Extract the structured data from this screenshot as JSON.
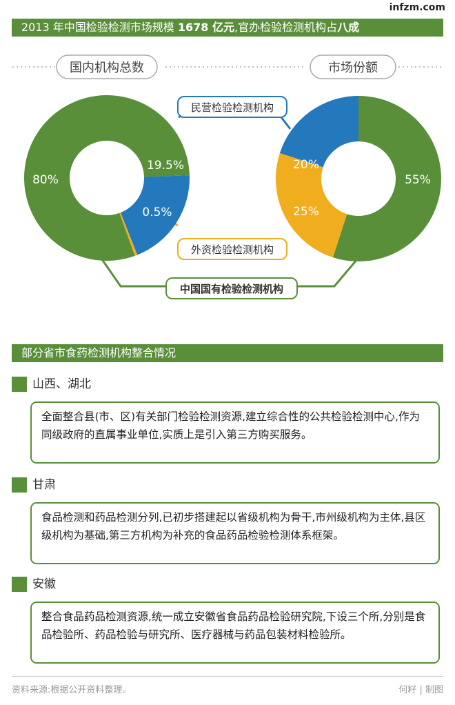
{
  "site_logo": "infzm.com",
  "header": {
    "title_pre": "2013 年中国检验检测市场规模 ",
    "title_num": "1678 亿元",
    "title_mid": ",官办检验检测机构占",
    "title_end": "八成"
  },
  "colors": {
    "green": "#5a8f3a",
    "blue": "#2479bd",
    "orange": "#f0ad1e"
  },
  "chart_data": [
    {
      "type": "pie",
      "title": "国内机构总数",
      "slices": [
        {
          "label": "中国国有检验检测机构",
          "value": 80,
          "display": "80%",
          "color": "#5a8f3a"
        },
        {
          "label": "民营检验检测机构",
          "value": 19.5,
          "display": "19.5%",
          "color": "#2479bd"
        },
        {
          "label": "外资检验检测机构",
          "value": 0.5,
          "display": "0.5%",
          "color": "#f0ad1e"
        }
      ]
    },
    {
      "type": "pie",
      "title": "市场份额",
      "slices": [
        {
          "label": "中国国有检验检测机构",
          "value": 55,
          "display": "55%",
          "color": "#5a8f3a"
        },
        {
          "label": "民营检验检测机构",
          "value": 20,
          "display": "20%",
          "color": "#2479bd"
        },
        {
          "label": "外资检验检测机构",
          "value": 25,
          "display": "25%",
          "color": "#f0ad1e"
        }
      ]
    }
  ],
  "labels": {
    "private": "民营检验检测机构",
    "foreign": "外资检验检测机构",
    "state": "中国国有检验检测机构"
  },
  "section2_title": "部分省市食药检测机构整合情况",
  "provinces": [
    {
      "name": "山西、湖北",
      "text": "全面整合县(市、区)有关部门检验检测资源,建立综合性的公共检验检测中心,作为同级政府的直属事业单位,实质上是引入第三方购买服务。"
    },
    {
      "name": "甘肃",
      "text": "食品检测和药品检测分列,已初步搭建起以省级机构为骨干,市州级机构为主体,县区级机构为基础,第三方机构为补充的食品药品检验检测体系框架。"
    },
    {
      "name": "安徽",
      "text": "整合食品药品检测资源,统一成立安徽省食品药品检验研究院,下设三个所,分别是食品检验所、药品检验与研究所、医疗器械与药品包装材料检验所。"
    }
  ],
  "footer": {
    "source": "资料来源:根据公开资料整理。",
    "credit": "何籽 | 制图"
  }
}
